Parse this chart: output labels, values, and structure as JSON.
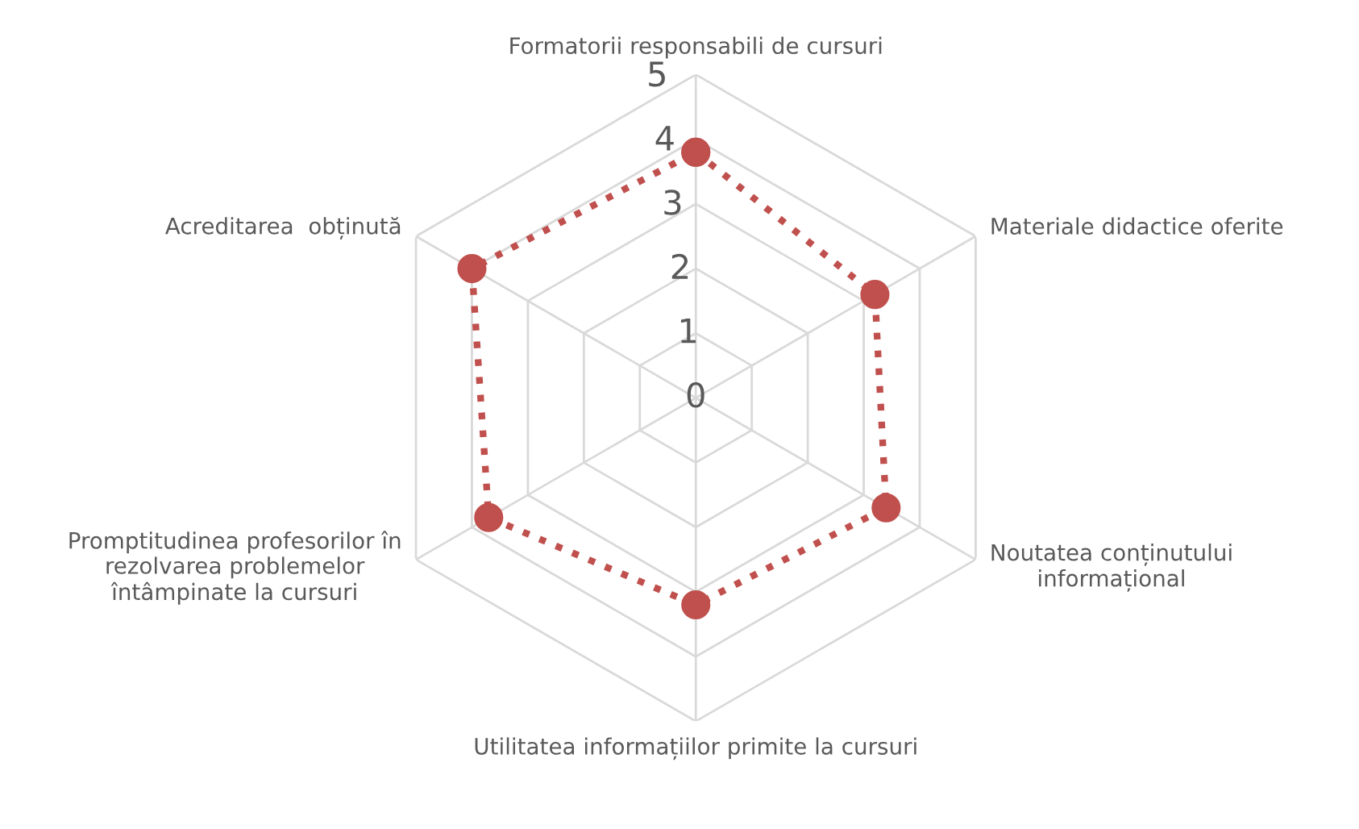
{
  "chart_data": {
    "type": "radar",
    "categories": [
      "Formatorii responsabili de cursuri",
      "Materiale didactice oferite",
      "Noutatea conținutului informațional",
      "Utilitatea informațiilor primite la cursuri",
      "Promptitudinea profesorilor în rezolvarea problemelor întâmpinate la cursuri",
      "Acreditarea  obținută"
    ],
    "series": [
      {
        "color": "#c0504d",
        "values": [
          3.8,
          3.2,
          3.4,
          3.2,
          3.7,
          4.0
        ]
      }
    ],
    "ylim": [
      0,
      5
    ],
    "yticks": [
      0,
      1,
      2,
      3,
      4,
      5
    ],
    "grid": true,
    "marker": "circle",
    "line_style": "dotted"
  }
}
